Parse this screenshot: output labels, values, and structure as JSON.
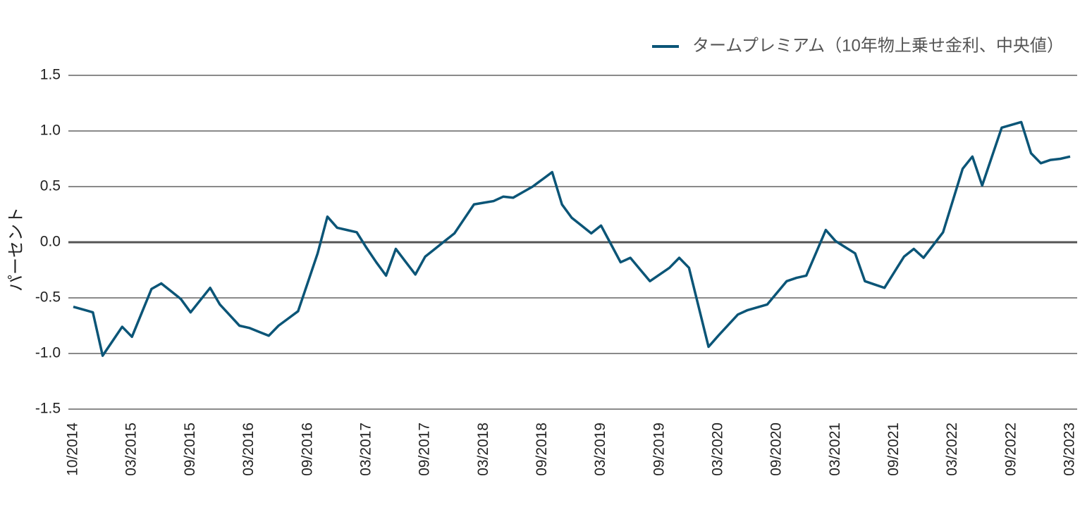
{
  "chart_data": {
    "type": "line",
    "y_label": "パーセント",
    "categories": [
      "10/2014",
      null,
      null,
      null,
      null,
      null,
      "03/2015",
      null,
      null,
      null,
      null,
      null,
      "09/2015",
      null,
      null,
      null,
      null,
      null,
      "03/2016",
      null,
      null,
      null,
      null,
      null,
      "09/2016",
      null,
      null,
      null,
      null,
      null,
      "03/2017",
      null,
      null,
      null,
      null,
      null,
      "09/2017",
      null,
      null,
      null,
      null,
      null,
      "03/2018",
      null,
      null,
      null,
      null,
      null,
      "09/2018",
      null,
      null,
      null,
      null,
      null,
      "03/2019",
      null,
      null,
      null,
      null,
      null,
      "09/2019",
      null,
      null,
      null,
      null,
      null,
      "03/2020",
      null,
      null,
      null,
      null,
      null,
      "09/2020",
      null,
      null,
      null,
      null,
      null,
      "03/2021",
      null,
      null,
      null,
      null,
      null,
      "09/2021",
      null,
      null,
      null,
      null,
      null,
      "03/2022",
      null,
      null,
      null,
      null,
      null,
      "09/2022",
      null,
      null,
      null,
      null,
      null,
      "03/2023"
    ],
    "series": [
      {
        "name": "タームプレミアム（10年物上乗せ金利、中央値）",
        "color": "#0b5577",
        "values": [
          -0.58,
          -0.605,
          -0.63,
          -1.02,
          -0.89,
          -0.76,
          -0.85,
          -0.635,
          -0.42,
          -0.37,
          -0.44,
          -0.51,
          -0.63,
          -0.52,
          -0.41,
          -0.56,
          -0.655,
          -0.75,
          -0.77,
          -0.805,
          -0.84,
          -0.75,
          -0.685,
          -0.62,
          -0.36,
          -0.1,
          0.23,
          0.13,
          0.11,
          0.09,
          -0.05,
          -0.18,
          -0.3,
          -0.06,
          -0.175,
          -0.29,
          -0.13,
          -0.06,
          0.01,
          0.08,
          0.21,
          0.34,
          0.355,
          0.37,
          0.41,
          0.4,
          0.45,
          0.5,
          0.565,
          0.63,
          0.34,
          0.22,
          0.15,
          0.08,
          0.15,
          -0.015,
          -0.18,
          -0.14,
          -0.245,
          -0.35,
          -0.29,
          -0.23,
          -0.14,
          -0.23,
          -0.585,
          -0.94,
          -0.84,
          -0.745,
          -0.65,
          -0.61,
          -0.585,
          -0.56,
          -0.455,
          -0.35,
          -0.32,
          -0.3,
          -0.095,
          0.11,
          0.01,
          -0.045,
          -0.1,
          -0.35,
          -0.38,
          -0.41,
          -0.27,
          -0.13,
          -0.06,
          -0.14,
          -0.025,
          0.09,
          0.375,
          0.66,
          0.77,
          0.51,
          0.77,
          1.03,
          1.055,
          1.08,
          0.8,
          0.71,
          0.74,
          0.75,
          0.77
        ]
      }
    ],
    "ylim": [
      -1.5,
      1.5
    ],
    "yticks": [
      -1.5,
      {
        "value": -1,
        "label": "-1.0"
      },
      -0.5,
      {
        "value": 0,
        "label": "0.0"
      },
      0.5,
      {
        "value": 1,
        "label": "1.0"
      },
      1.5
    ],
    "grid": true,
    "legend": "top-right"
  }
}
